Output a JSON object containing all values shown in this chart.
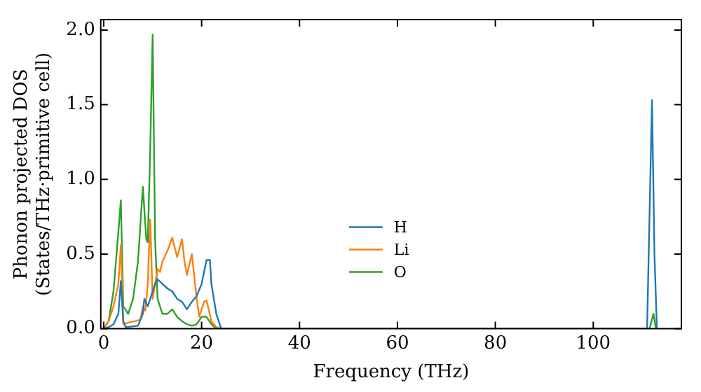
{
  "chart_data": {
    "type": "line",
    "xlabel": "Frequency (THz)",
    "ylabel": "Phonon projected DOS\n(States/THz·primitive cell)",
    "xlim": [
      -0.6,
      118
    ],
    "ylim": [
      0,
      2.07
    ],
    "xticks": [
      0,
      20,
      40,
      60,
      80,
      100
    ],
    "yticks": [
      {
        "value": 0,
        "label": "0.0"
      },
      {
        "value": 0.5,
        "label": "0.5"
      },
      {
        "value": 1,
        "label": "1.0"
      },
      {
        "value": 1.5,
        "label": "1.5"
      },
      {
        "value": 2,
        "label": "2.0"
      }
    ],
    "grid": false,
    "legend": "bottom",
    "marker": "none",
    "line_style": "solid",
    "series": [
      {
        "name": "H",
        "color": "#1f77b4",
        "x": [
          0,
          1,
          2,
          3,
          3.5,
          4,
          4.5,
          7,
          8,
          8.3,
          9,
          9.5,
          10.5,
          11,
          12,
          13,
          14,
          15,
          16,
          17,
          18,
          19,
          20,
          21,
          21.7,
          22,
          23,
          24,
          111,
          112,
          112.5,
          113
        ],
        "values": [
          0,
          0.01,
          0.03,
          0.1,
          0.32,
          0.05,
          0.01,
          0.02,
          0.1,
          0.2,
          0.15,
          0.2,
          0.3,
          0.33,
          0.3,
          0.27,
          0.25,
          0.2,
          0.18,
          0.13,
          0.18,
          0.22,
          0.3,
          0.46,
          0.46,
          0.3,
          0.1,
          0,
          0,
          1.53,
          0.5,
          0
        ]
      },
      {
        "name": "Li",
        "color": "#ff7f0e",
        "x": [
          0,
          1,
          2,
          3,
          3.5,
          4,
          5,
          7.5,
          8,
          8.5,
          9,
          9.5,
          10,
          11,
          11.5,
          12,
          13,
          14,
          15,
          16,
          16.5,
          17,
          18,
          19,
          19.5,
          20.5,
          21,
          22,
          23,
          24
        ],
        "values": [
          0,
          0.05,
          0.15,
          0.3,
          0.56,
          0.03,
          0.04,
          0.06,
          0.15,
          0.12,
          0.3,
          0.73,
          0.2,
          0.4,
          0.38,
          0.45,
          0.52,
          0.61,
          0.48,
          0.6,
          0.45,
          0.36,
          0.5,
          0.2,
          0.08,
          0.18,
          0.19,
          0.05,
          0.01,
          0
        ]
      },
      {
        "name": "O",
        "color": "#2ca02c",
        "x": [
          0,
          1,
          2,
          3,
          3.5,
          4,
          5,
          6,
          7,
          8,
          8.7,
          9,
          9.5,
          10,
          10.5,
          11,
          12,
          13,
          14,
          15,
          16,
          17,
          18,
          19,
          20,
          21,
          22,
          23,
          111.5,
          112.3,
          112.8
        ],
        "values": [
          0,
          0.05,
          0.25,
          0.65,
          0.86,
          0.15,
          0.1,
          0.2,
          0.45,
          0.95,
          0.6,
          0.58,
          1.2,
          1.97,
          0.6,
          0.2,
          0.1,
          0.1,
          0.13,
          0.08,
          0.05,
          0.03,
          0.02,
          0.03,
          0.08,
          0.08,
          0.03,
          0,
          0,
          0.1,
          0
        ]
      }
    ]
  }
}
